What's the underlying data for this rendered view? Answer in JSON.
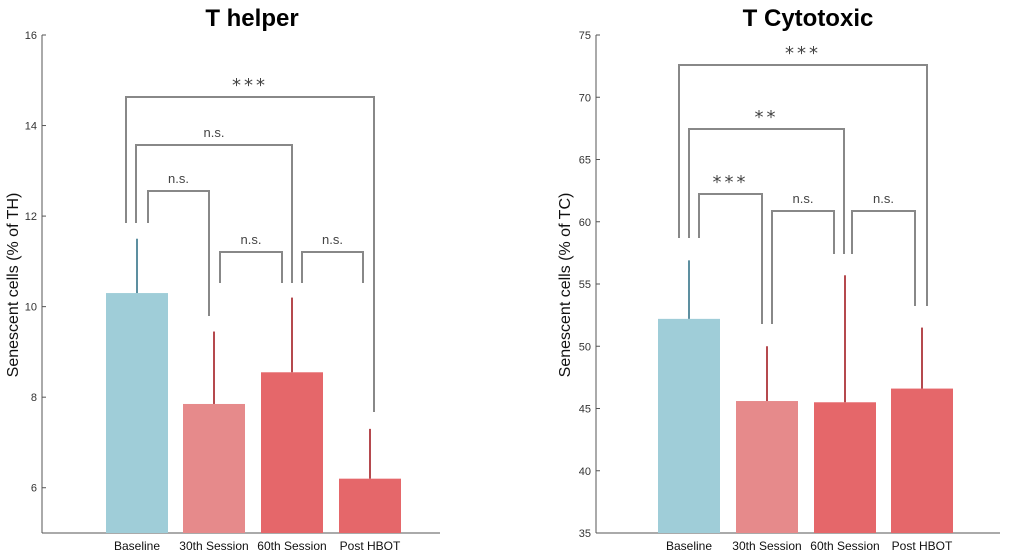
{
  "chart_data": [
    {
      "type": "bar",
      "title": "T helper",
      "xlabel": "",
      "ylabel": "Senescent cells (% of TH)",
      "ylim": [
        5,
        16
      ],
      "yticks": [
        6,
        8,
        10,
        12,
        14,
        16
      ],
      "categories": [
        "Baseline",
        "30th Session",
        "60th Session",
        "Post HBOT"
      ],
      "values": [
        10.3,
        7.85,
        8.55,
        6.2
      ],
      "error_upper": [
        11.5,
        9.45,
        10.2,
        7.3
      ],
      "colors": [
        "#9FCDD8",
        "#E68A8B",
        "#E5676A",
        "#E5676A"
      ],
      "error_colors": [
        "#5D8FA0",
        "#B5494E",
        "#B5494E",
        "#B5494E"
      ],
      "comparisons": [
        {
          "from": 0,
          "to": 1,
          "label": "n.s."
        },
        {
          "from": 1,
          "to": 2,
          "label": "n.s."
        },
        {
          "from": 2,
          "to": 3,
          "label": "n.s."
        },
        {
          "from": 0,
          "to": 2,
          "label": "n.s."
        },
        {
          "from": 0,
          "to": 3,
          "label": "***"
        }
      ]
    },
    {
      "type": "bar",
      "title": "T Cytotoxic",
      "xlabel": "",
      "ylabel": "Senescent cells (% of TC)",
      "ylim": [
        35,
        75
      ],
      "yticks": [
        35,
        40,
        45,
        50,
        55,
        60,
        65,
        70,
        75
      ],
      "categories": [
        "Baseline",
        "30th Session",
        "60th Session",
        "Post HBOT"
      ],
      "values": [
        52.2,
        45.6,
        45.5,
        46.6
      ],
      "error_upper": [
        56.9,
        50.0,
        55.7,
        51.5
      ],
      "colors": [
        "#9FCDD8",
        "#E68A8B",
        "#E5676A",
        "#E5676A"
      ],
      "error_colors": [
        "#5D8FA0",
        "#B5494E",
        "#B5494E",
        "#B5494E"
      ],
      "comparisons": [
        {
          "from": 0,
          "to": 1,
          "label": "***"
        },
        {
          "from": 1,
          "to": 2,
          "label": "n.s."
        },
        {
          "from": 2,
          "to": 3,
          "label": "n.s."
        },
        {
          "from": 0,
          "to": 2,
          "label": "**"
        },
        {
          "from": 0,
          "to": 3,
          "label": "***"
        }
      ]
    }
  ]
}
